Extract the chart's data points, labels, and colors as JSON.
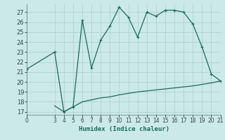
{
  "xlabel": "Humidex (Indice chaleur)",
  "bg_color": "#cce9e9",
  "grid_color": "#aacccc",
  "line_color": "#1a6b5a",
  "upper_x": [
    0,
    3,
    4,
    5,
    6,
    7,
    8,
    9,
    10,
    11,
    12,
    13,
    14,
    15,
    16,
    17,
    18,
    19,
    20,
    21
  ],
  "upper_y": [
    21.3,
    23.0,
    17.0,
    17.5,
    26.2,
    21.4,
    24.2,
    25.6,
    27.5,
    26.5,
    24.5,
    27.0,
    26.6,
    27.2,
    27.2,
    27.0,
    25.8,
    23.5,
    20.8,
    20.1
  ],
  "lower_x": [
    3,
    4,
    5,
    6,
    7,
    8,
    9,
    10,
    11,
    12,
    13,
    14,
    15,
    16,
    17,
    18,
    19,
    20,
    21
  ],
  "lower_y": [
    17.6,
    17.0,
    17.5,
    18.0,
    18.2,
    18.4,
    18.5,
    18.7,
    18.85,
    19.0,
    19.1,
    19.2,
    19.3,
    19.4,
    19.5,
    19.6,
    19.75,
    19.9,
    20.1
  ],
  "xlim": [
    0,
    21
  ],
  "ylim": [
    16.7,
    27.8
  ],
  "yticks": [
    17,
    18,
    19,
    20,
    21,
    22,
    23,
    24,
    25,
    26,
    27
  ],
  "xticks": [
    0,
    3,
    4,
    5,
    6,
    7,
    8,
    9,
    10,
    11,
    12,
    13,
    14,
    15,
    16,
    17,
    18,
    19,
    20,
    21
  ]
}
